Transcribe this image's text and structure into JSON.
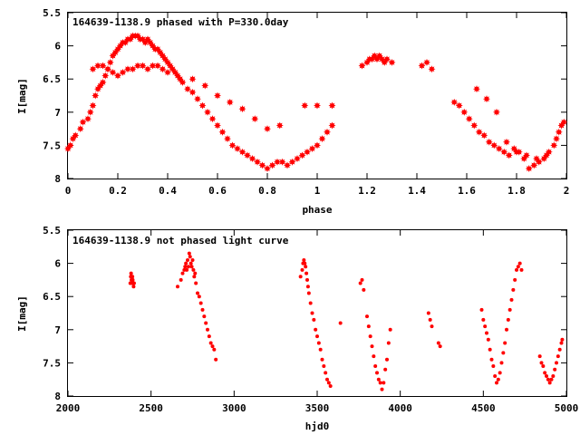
{
  "chart_data": [
    {
      "type": "scatter",
      "title": "164639-1138.9 phased with P=330.0day",
      "xlabel": "phase",
      "ylabel": "I[mag]",
      "xlim": [
        0,
        2
      ],
      "ylim": [
        8,
        5.5
      ],
      "xticks": [
        0,
        0.2,
        0.4,
        0.6,
        0.8,
        1,
        1.2,
        1.4,
        1.6,
        1.8,
        2
      ],
      "xtick_labels": [
        "0",
        "0.2",
        "0.4",
        "0.6",
        "0.8",
        "1",
        "1.2",
        "1.4",
        "1.6",
        "1.8",
        "2"
      ],
      "yticks": [
        5.5,
        6,
        6.5,
        7,
        7.5,
        8
      ],
      "ytick_labels": [
        "5.5",
        "6",
        "6.5",
        "7",
        "7.5",
        "8"
      ],
      "marker_color": "#ff0000",
      "marker": "filled-star",
      "series": [
        {
          "x": [
            0.0,
            0.01,
            0.02,
            0.03,
            0.05,
            0.06,
            0.08,
            0.09,
            0.1,
            0.11,
            0.12,
            0.13,
            0.14,
            0.15,
            0.16,
            0.17,
            0.18,
            0.19,
            0.2,
            0.21,
            0.22,
            0.23,
            0.24,
            0.25,
            0.26,
            0.27,
            0.28,
            0.29,
            0.3,
            0.31,
            0.32,
            0.33,
            0.34,
            0.35,
            0.36,
            0.37,
            0.38,
            0.39,
            0.4,
            0.41,
            0.42,
            0.43,
            0.44,
            0.45,
            0.46,
            0.48,
            0.5,
            0.52,
            0.54,
            0.56,
            0.58,
            0.6,
            0.62,
            0.64,
            0.66,
            0.68,
            0.7,
            0.72,
            0.74,
            0.76,
            0.78,
            0.8,
            0.82,
            0.84,
            0.86,
            0.88,
            0.9,
            0.92,
            0.94,
            0.96,
            0.98,
            1.0,
            1.02,
            1.04,
            1.06,
            0.1,
            0.12,
            0.14,
            0.16,
            0.18,
            0.2,
            0.22,
            0.24,
            0.26,
            0.28,
            0.3,
            0.32,
            0.34,
            0.36,
            0.38,
            0.4,
            0.5,
            0.55,
            0.6,
            0.65,
            0.7,
            0.75,
            0.8,
            0.85,
            0.95,
            1.0,
            1.06,
            1.18,
            1.2,
            1.21,
            1.22,
            1.23,
            1.24,
            1.25,
            1.26,
            1.27,
            1.28,
            1.3,
            1.42,
            1.44,
            1.46,
            1.55,
            1.57,
            1.59,
            1.61,
            1.63,
            1.65,
            1.67,
            1.69,
            1.71,
            1.73,
            1.75,
            1.77,
            1.79,
            1.81,
            1.83,
            1.85,
            1.87,
            1.89,
            1.91,
            1.93,
            1.95,
            1.97,
            1.99,
            1.64,
            1.68,
            1.72,
            1.76,
            1.8,
            1.84,
            1.88,
            1.92,
            1.96,
            1.98
          ],
          "y": [
            7.55,
            7.5,
            7.4,
            7.35,
            7.25,
            7.15,
            7.1,
            7.0,
            6.9,
            6.75,
            6.65,
            6.6,
            6.55,
            6.45,
            6.35,
            6.25,
            6.15,
            6.1,
            6.05,
            6.0,
            5.95,
            5.95,
            5.9,
            5.9,
            5.85,
            5.85,
            5.85,
            5.9,
            5.9,
            5.95,
            5.9,
            5.95,
            6.0,
            6.05,
            6.05,
            6.1,
            6.15,
            6.2,
            6.25,
            6.3,
            6.35,
            6.4,
            6.45,
            6.5,
            6.55,
            6.65,
            6.7,
            6.8,
            6.9,
            7.0,
            7.1,
            7.2,
            7.3,
            7.4,
            7.5,
            7.55,
            7.6,
            7.65,
            7.7,
            7.75,
            7.8,
            7.85,
            7.8,
            7.75,
            7.75,
            7.8,
            7.75,
            7.7,
            7.65,
            7.6,
            7.55,
            7.5,
            7.4,
            7.3,
            7.2,
            6.35,
            6.3,
            6.3,
            6.35,
            6.4,
            6.45,
            6.4,
            6.35,
            6.35,
            6.3,
            6.3,
            6.35,
            6.3,
            6.3,
            6.35,
            6.4,
            6.5,
            6.6,
            6.75,
            6.85,
            6.95,
            7.1,
            7.25,
            7.2,
            6.9,
            6.9,
            6.9,
            6.3,
            6.25,
            6.2,
            6.2,
            6.15,
            6.2,
            6.15,
            6.2,
            6.25,
            6.2,
            6.25,
            6.3,
            6.25,
            6.35,
            6.85,
            6.9,
            7.0,
            7.1,
            7.2,
            7.3,
            7.35,
            7.45,
            7.5,
            7.55,
            7.6,
            7.65,
            7.55,
            7.6,
            7.7,
            7.85,
            7.8,
            7.75,
            7.7,
            7.6,
            7.5,
            7.3,
            7.15,
            6.65,
            6.8,
            7.0,
            7.45,
            7.6,
            7.65,
            7.7,
            7.65,
            7.4,
            7.2
          ]
        }
      ]
    },
    {
      "type": "scatter",
      "title": "164639-1138.9 not phased light curve",
      "xlabel": "hjd0",
      "ylabel": "I[mag]",
      "xlim": [
        2000,
        5000
      ],
      "ylim": [
        8,
        5.5
      ],
      "xticks": [
        2000,
        2500,
        3000,
        3500,
        4000,
        4500,
        5000
      ],
      "xtick_labels": [
        "2000",
        "2500",
        "3000",
        "3500",
        "4000",
        "4500",
        "5000"
      ],
      "yticks": [
        5.5,
        6,
        6.5,
        7,
        7.5,
        8
      ],
      "ytick_labels": [
        "5.5",
        "6",
        "6.5",
        "7",
        "7.5",
        "8"
      ],
      "marker_color": "#ff0000",
      "marker": "dot",
      "series": [
        {
          "x": [
            2375,
            2378,
            2380,
            2382,
            2385,
            2388,
            2390,
            2392,
            2395,
            2398,
            2660,
            2680,
            2690,
            2700,
            2705,
            2710,
            2715,
            2720,
            2725,
            2730,
            2735,
            2740,
            2745,
            2750,
            2755,
            2760,
            2765,
            2770,
            2780,
            2790,
            2800,
            2810,
            2820,
            2830,
            2840,
            2850,
            2860,
            2870,
            2880,
            2890,
            3400,
            3410,
            3415,
            3420,
            3425,
            3430,
            3435,
            3440,
            3445,
            3450,
            3460,
            3470,
            3480,
            3490,
            3500,
            3510,
            3520,
            3530,
            3540,
            3550,
            3560,
            3570,
            3580,
            3640,
            3760,
            3770,
            3780,
            3800,
            3810,
            3820,
            3830,
            3840,
            3850,
            3860,
            3870,
            3880,
            3890,
            3900,
            3910,
            3920,
            3930,
            3940,
            4170,
            4180,
            4190,
            4230,
            4240,
            4490,
            4500,
            4510,
            4520,
            4530,
            4540,
            4550,
            4560,
            4570,
            4580,
            4590,
            4600,
            4610,
            4620,
            4630,
            4640,
            4650,
            4660,
            4670,
            4680,
            4690,
            4700,
            4710,
            4720,
            4730,
            4840,
            4850,
            4860,
            4870,
            4880,
            4890,
            4900,
            4910,
            4920,
            4930,
            4940,
            4950,
            4960,
            4970,
            4975
          ],
          "y": [
            6.3,
            6.2,
            6.15,
            6.25,
            6.3,
            6.2,
            6.25,
            6.3,
            6.35,
            6.3,
            6.35,
            6.25,
            6.15,
            6.1,
            6.05,
            6.0,
            6.1,
            5.95,
            6.05,
            5.85,
            5.9,
            6.0,
            6.05,
            5.95,
            6.1,
            6.2,
            6.15,
            6.3,
            6.45,
            6.5,
            6.6,
            6.7,
            6.8,
            6.9,
            7.0,
            7.1,
            7.2,
            7.25,
            7.3,
            7.45,
            6.2,
            6.1,
            6.0,
            5.95,
            6.0,
            6.05,
            6.15,
            6.25,
            6.35,
            6.45,
            6.6,
            6.75,
            6.85,
            7.0,
            7.1,
            7.2,
            7.3,
            7.45,
            7.55,
            7.65,
            7.75,
            7.8,
            7.85,
            6.9,
            6.3,
            6.25,
            6.4,
            6.8,
            6.95,
            7.1,
            7.25,
            7.4,
            7.55,
            7.65,
            7.75,
            7.8,
            7.9,
            7.8,
            7.6,
            7.45,
            7.2,
            7.0,
            6.75,
            6.85,
            6.95,
            7.2,
            7.25,
            6.7,
            6.85,
            6.95,
            7.05,
            7.15,
            7.3,
            7.45,
            7.55,
            7.7,
            7.8,
            7.75,
            7.65,
            7.5,
            7.35,
            7.2,
            7.0,
            6.85,
            6.7,
            6.55,
            6.4,
            6.25,
            6.1,
            6.05,
            6.0,
            6.1,
            7.4,
            7.5,
            7.55,
            7.65,
            7.7,
            7.75,
            7.8,
            7.75,
            7.7,
            7.6,
            7.5,
            7.4,
            7.3,
            7.2,
            7.15
          ]
        }
      ]
    }
  ]
}
